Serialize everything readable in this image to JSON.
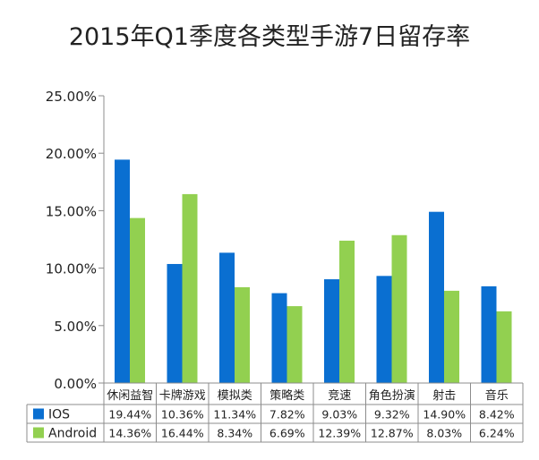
{
  "chart_data": {
    "type": "bar",
    "title": "2015年Q1季度各类型手游7日留存率",
    "xlabel": "",
    "ylabel": "",
    "ylim": [
      0,
      25
    ],
    "y_ticks": [
      "0.00%",
      "5.00%",
      "10.00%",
      "15.00%",
      "20.00%",
      "25.00%"
    ],
    "y_tick_values": [
      0,
      5,
      10,
      15,
      20,
      25
    ],
    "grid": false,
    "legend_placement": "bottom-left (data table)",
    "categories": [
      "休闲益智",
      "卡牌游戏",
      "模拟类",
      "策略类",
      "竞速",
      "角色扮演",
      "射击",
      "音乐"
    ],
    "series": [
      {
        "name": "IOS",
        "color": "#0a6fd1",
        "values": [
          19.44,
          10.36,
          11.34,
          7.82,
          9.03,
          9.32,
          14.9,
          8.42
        ],
        "labels": [
          "19.44%",
          "10.36%",
          "11.34%",
          "7.82%",
          "9.03%",
          "9.32%",
          "14.90%",
          "8.42%"
        ]
      },
      {
        "name": "Android",
        "color": "#92d050",
        "values": [
          14.36,
          16.44,
          8.34,
          6.69,
          12.39,
          12.87,
          8.03,
          6.24
        ],
        "labels": [
          "14.36%",
          "16.44%",
          "8.34%",
          "6.69%",
          "12.39%",
          "12.87%",
          "8.03%",
          "6.24%"
        ]
      }
    ]
  }
}
